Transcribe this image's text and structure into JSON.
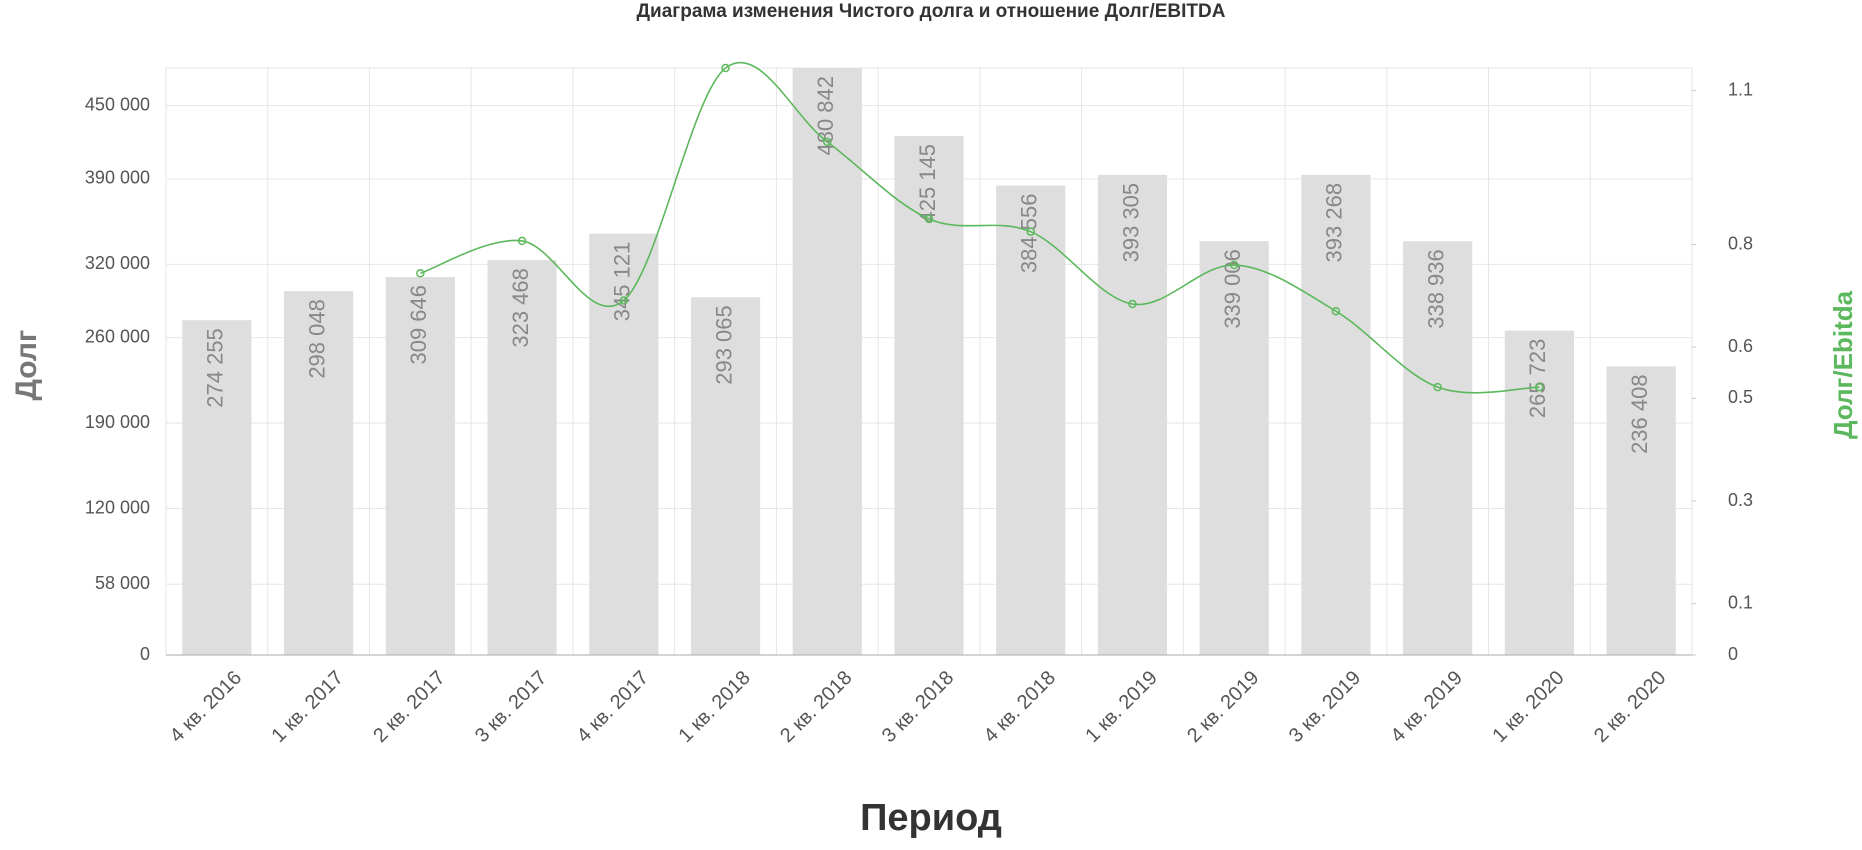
{
  "chart_data": {
    "type": "bar",
    "title": "Диаграма изменения Чистого долга и отношение Долг/EBITDA",
    "x_label": "Период",
    "y_label": "Долг",
    "y2_label": "Долг/Ebitda",
    "categories": [
      "4 кв. 2016",
      "1 кв. 2017",
      "2 кв. 2017",
      "3 кв. 2017",
      "4 кв. 2017",
      "1 кв. 2018",
      "2 кв. 2018",
      "3 кв. 2018",
      "4 кв. 2018",
      "1 кв. 2019",
      "2 кв. 2019",
      "3 кв. 2019",
      "4 кв. 2019",
      "1 кв. 2020",
      "2 кв. 2020"
    ],
    "series": [
      {
        "name": "Долг",
        "type": "bar",
        "color": "#dedede",
        "values": [
          274255,
          298048,
          309646,
          323468,
          345121,
          293065,
          480842,
          425145,
          384556,
          393305,
          339006,
          393268,
          338936,
          265723,
          236408
        ],
        "value_labels": [
          "274 255",
          "298 048",
          "309 646",
          "323 468",
          "345 121",
          "293 065",
          "480 842",
          "425 145",
          "384 556",
          "393 305",
          "339 006",
          "393 268",
          "338 936",
          "265 723",
          "236 408"
        ]
      },
      {
        "name": "Долг/Ebitda",
        "type": "line",
        "axis": "y2",
        "color": "#5cb85c",
        "values": [
          null,
          null,
          0.744,
          0.807,
          0.691,
          1.144,
          1.0,
          0.85,
          0.825,
          0.684,
          0.76,
          0.67,
          0.522,
          0.522,
          null
        ]
      }
    ],
    "ylim": [
      0,
      480842
    ],
    "yticks": [
      0,
      {
        "value": 58000,
        "label": "58 000"
      },
      {
        "value": 120000,
        "label": "120 000"
      },
      {
        "value": 190000,
        "label": "190 000"
      },
      {
        "value": 260000,
        "label": "260 000"
      },
      {
        "value": 320000,
        "label": "320 000"
      },
      {
        "value": 390000,
        "label": "390 000"
      },
      {
        "value": 450000,
        "label": "450 000"
      }
    ],
    "y2lim": [
      0,
      1.144
    ],
    "y2ticks": [
      0,
      0.1,
      0.3,
      0.5,
      0.6,
      0.8,
      1.1
    ],
    "grid": true
  }
}
